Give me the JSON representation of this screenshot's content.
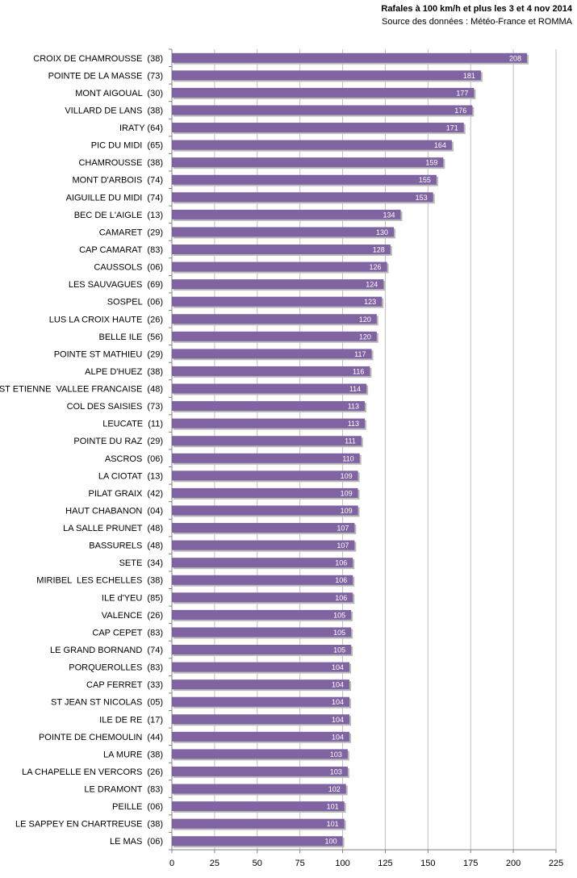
{
  "chart_data": {
    "type": "bar",
    "orientation": "horizontal",
    "title": "Rafales à 100 km/h et plus les 3 et 4 nov 2014",
    "subtitle": "Source des données : Météo-France et ROMMA",
    "xlabel": "",
    "ylabel": "",
    "xlim": [
      0,
      225
    ],
    "ticks": [
      0,
      25,
      50,
      75,
      100,
      125,
      150,
      175,
      200,
      225
    ],
    "grid": true,
    "bar_color": "#8064a2",
    "categories": [
      "CROIX DE CHAMROUSSE  (38)",
      "POINTE DE LA MASSE  (73)",
      "MONT AIGOUAL  (30)",
      "VILLARD DE LANS  (38)",
      "IRATY (64)",
      "PIC DU MIDI  (65)",
      "CHAMROUSSE  (38)",
      "MONT D'ARBOIS  (74)",
      "AIGUILLE DU MIDI  (74)",
      "BEC DE L'AIGLE  (13)",
      "CAMARET  (29)",
      "CAP CAMARAT  (83)",
      "CAUSSOLS  (06)",
      "LES SAUVAGUES  (69)",
      "SOSPEL  (06)",
      "LUS LA CROIX HAUTE  (26)",
      "BELLE ILE  (56)",
      "POINTE ST MATHIEU  (29)",
      "ALPE D'HUEZ  (38)",
      "ST ETIENNE  VALLEE FRANCAISE  (48)",
      "COL DES SAISIES  (73)",
      "LEUCATE  (11)",
      "POINTE DU RAZ  (29)",
      "ASCROS  (06)",
      "LA CIOTAT  (13)",
      "PILAT GRAIX  (42)",
      "HAUT CHABANON  (04)",
      "LA SALLE PRUNET  (48)",
      "BASSURELS  (48)",
      "SETE  (34)",
      "MIRIBEL  LES ECHELLES  (38)",
      "ILE d'YEU  (85)",
      "VALENCE  (26)",
      "CAP CEPET  (83)",
      "LE GRAND BORNAND  (74)",
      "PORQUEROLLES  (83)",
      "CAP FERRET  (33)",
      "ST JEAN ST NICOLAS  (05)",
      "ILE DE RE  (17)",
      "POINTE DE CHEMOULIN  (44)",
      "LA MURE  (38)",
      "LA CHAPELLE EN VERCORS  (26)",
      "LE DRAMONT  (83)",
      "PEILLE  (06)",
      "LE SAPPEY EN CHARTREUSE  (38)",
      "LE MAS  (06)"
    ],
    "values": [
      208,
      181,
      177,
      176,
      171,
      164,
      159,
      155,
      153,
      134,
      130,
      128,
      126,
      124,
      123,
      120,
      120,
      117,
      116,
      114,
      113,
      113,
      111,
      110,
      109,
      109,
      109,
      107,
      107,
      106,
      106,
      106,
      105,
      105,
      105,
      104,
      104,
      104,
      104,
      104,
      103,
      103,
      102,
      101,
      101,
      100
    ]
  }
}
